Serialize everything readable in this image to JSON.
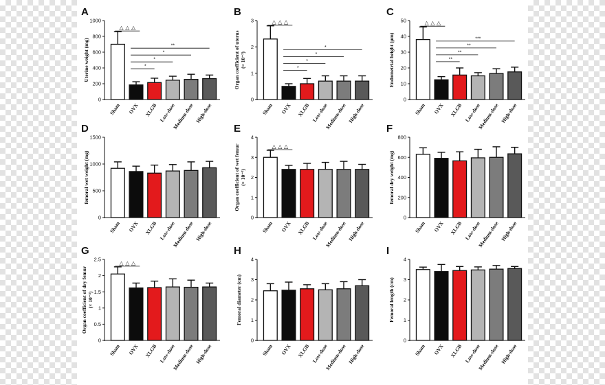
{
  "colors": [
    "#ffffff",
    "#0c0c0c",
    "#e31a1c",
    "#b4b4b4",
    "#7c7c7c",
    "#595959"
  ],
  "chart_data": [
    {
      "panel": "A",
      "type": "bar",
      "categories": [
        "Sham",
        "OVX",
        "XLGB",
        "Low-dose",
        "Medium-dose",
        "High-dose"
      ],
      "values": [
        700,
        185,
        215,
        245,
        255,
        265
      ],
      "errors": [
        160,
        40,
        55,
        50,
        65,
        45
      ],
      "ylabel": "Uterine weight (mg)",
      "ylim": [
        0,
        1000
      ],
      "yticks": [
        "0",
        "200",
        "400",
        "600",
        "800",
        "1000"
      ],
      "triangles": "△ △ △",
      "significance": [
        {
          "from": 1,
          "to": 2,
          "label": "*"
        },
        {
          "from": 1,
          "to": 3,
          "label": "*"
        },
        {
          "from": 1,
          "to": 4,
          "label": "*"
        },
        {
          "from": 1,
          "to": 5,
          "label": "**"
        }
      ]
    },
    {
      "panel": "B",
      "type": "bar",
      "categories": [
        "Sham",
        "OVX",
        "XLGB",
        "Low-dose",
        "Medium-dose",
        "High-dose"
      ],
      "values": [
        2.3,
        0.5,
        0.6,
        0.7,
        0.7,
        0.7
      ],
      "errors": [
        0.5,
        0.1,
        0.2,
        0.2,
        0.2,
        0.2
      ],
      "ylabel": "Organ coefficient of uterus",
      "ylabel2": "(× 10⁻³)",
      "ylim": [
        0,
        3
      ],
      "yticks": [
        "0",
        "1",
        "2",
        "3"
      ],
      "triangles": "△ △ △",
      "significance": [
        {
          "from": 1,
          "to": 2,
          "label": "*"
        },
        {
          "from": 1,
          "to": 3,
          "label": "*"
        },
        {
          "from": 1,
          "to": 4,
          "label": "*"
        },
        {
          "from": 1,
          "to": 5,
          "label": "*"
        }
      ]
    },
    {
      "panel": "C",
      "type": "bar",
      "categories": [
        "Sham",
        "OVX",
        "XLGB",
        "Low-dose",
        "Medium-dose",
        "High-dose"
      ],
      "values": [
        38,
        12.5,
        15.5,
        15,
        16.5,
        17.5
      ],
      "errors": [
        8,
        2,
        4.5,
        2,
        3,
        3
      ],
      "ylabel": "Endometrial height (μm)",
      "ylim": [
        0,
        50
      ],
      "yticks": [
        "0",
        "10",
        "20",
        "30",
        "40",
        "50"
      ],
      "triangles": "△ △ △",
      "significance": [
        {
          "from": 1,
          "to": 2,
          "label": "**"
        },
        {
          "from": 1,
          "to": 3,
          "label": "**"
        },
        {
          "from": 1,
          "to": 4,
          "label": "**"
        },
        {
          "from": 1,
          "to": 5,
          "label": "***"
        }
      ]
    },
    {
      "panel": "D",
      "type": "bar",
      "categories": [
        "Sham",
        "OVX",
        "XLGB",
        "Low-dose",
        "Medium-dose",
        "High-dose"
      ],
      "values": [
        920,
        860,
        830,
        870,
        880,
        930
      ],
      "errors": [
        120,
        100,
        150,
        120,
        160,
        120
      ],
      "ylabel": "femoral wet weight (mg)",
      "ylim": [
        0,
        1500
      ],
      "yticks": [
        "0",
        "500",
        "1000",
        "1500"
      ],
      "significance": []
    },
    {
      "panel": "E",
      "type": "bar",
      "categories": [
        "Sham",
        "OVX",
        "XLGB",
        "Low-dose",
        "Medium-dose",
        "High-dose"
      ],
      "values": [
        3.0,
        2.4,
        2.4,
        2.4,
        2.4,
        2.4
      ],
      "errors": [
        0.35,
        0.2,
        0.3,
        0.35,
        0.4,
        0.25
      ],
      "ylabel": "Organ coefficient of wet femur",
      "ylabel2": "(× 10⁻³)",
      "ylim": [
        0,
        4
      ],
      "yticks": [
        "0",
        "1",
        "2",
        "3",
        "4"
      ],
      "triangles": "△ △ △",
      "significance": []
    },
    {
      "panel": "F",
      "type": "bar",
      "categories": [
        "Sham",
        "OVX",
        "XLGB",
        "Low-dose",
        "Medium-dose",
        "High-dose"
      ],
      "values": [
        630,
        590,
        565,
        595,
        600,
        635
      ],
      "errors": [
        65,
        60,
        90,
        85,
        105,
        65
      ],
      "ylabel": "femoral dry weight (mg)",
      "ylim": [
        0,
        800
      ],
      "yticks": [
        "0",
        "200",
        "400",
        "600",
        "800"
      ],
      "significance": []
    },
    {
      "panel": "G",
      "type": "bar",
      "categories": [
        "Sham",
        "OVX",
        "XLGB",
        "Low-dose",
        "Medium-dose",
        "High-dose"
      ],
      "values": [
        2.05,
        1.62,
        1.63,
        1.65,
        1.64,
        1.65
      ],
      "errors": [
        0.22,
        0.15,
        0.2,
        0.25,
        0.22,
        0.12
      ],
      "ylabel": "Organ coefficient of dry femur",
      "ylabel2": "(× 10⁻³)",
      "ylim": [
        0,
        2.5
      ],
      "yticks": [
        "0",
        "0.5",
        "1",
        "1.5",
        "2",
        "2.5"
      ],
      "triangles": "△ △ △",
      "significance": []
    },
    {
      "panel": "H",
      "type": "bar",
      "categories": [
        "Sham",
        "OVX",
        "XLGB",
        "Low-dose",
        "Medium-dose",
        "High-dose"
      ],
      "values": [
        2.45,
        2.48,
        2.55,
        2.5,
        2.55,
        2.7
      ],
      "errors": [
        0.35,
        0.4,
        0.2,
        0.3,
        0.35,
        0.3
      ],
      "ylabel": "Femoral diameter (cm)",
      "ylim": [
        0,
        4
      ],
      "yticks": [
        "0",
        "1",
        "2",
        "3",
        "4"
      ],
      "significance": []
    },
    {
      "panel": "I",
      "type": "bar",
      "categories": [
        "Sham",
        "OVX",
        "XLGB",
        "Low-dose",
        "Medium-dose",
        "High-dose"
      ],
      "values": [
        3.5,
        3.4,
        3.45,
        3.48,
        3.52,
        3.55
      ],
      "errors": [
        0.12,
        0.35,
        0.2,
        0.15,
        0.18,
        0.1
      ],
      "ylabel": "Femoral length (cm)",
      "ylim": [
        0,
        4
      ],
      "yticks": [
        "0",
        "1",
        "2",
        "3",
        "4"
      ],
      "significance": []
    }
  ]
}
